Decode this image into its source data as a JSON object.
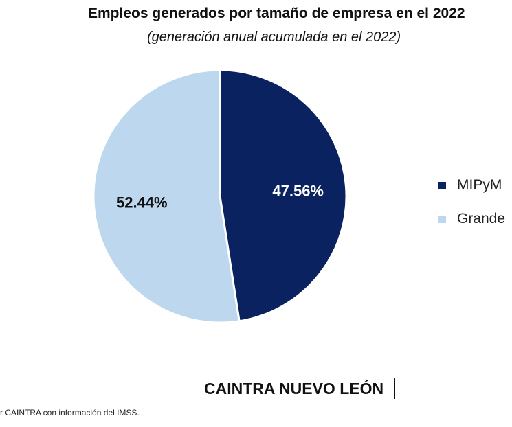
{
  "chart_data": {
    "type": "pie",
    "title": "Empleos generados por tamaño de empresa en el 2022",
    "subtitle": "(generación anual acumulada en el 2022)",
    "series": [
      {
        "name": "MIPyMES",
        "legend_text": "MIPyM",
        "value": 47.56,
        "label": "47.56%",
        "color": "#0a2260"
      },
      {
        "name": "Grandes",
        "legend_text": "Grande",
        "value": 52.44,
        "label": "52.44%",
        "color": "#bdd7ee"
      }
    ],
    "legend_position": "right"
  },
  "footer": {
    "brand": "CAINTRA NUEVO LEÓN",
    "source": "r CAINTRA con información del IMSS."
  }
}
